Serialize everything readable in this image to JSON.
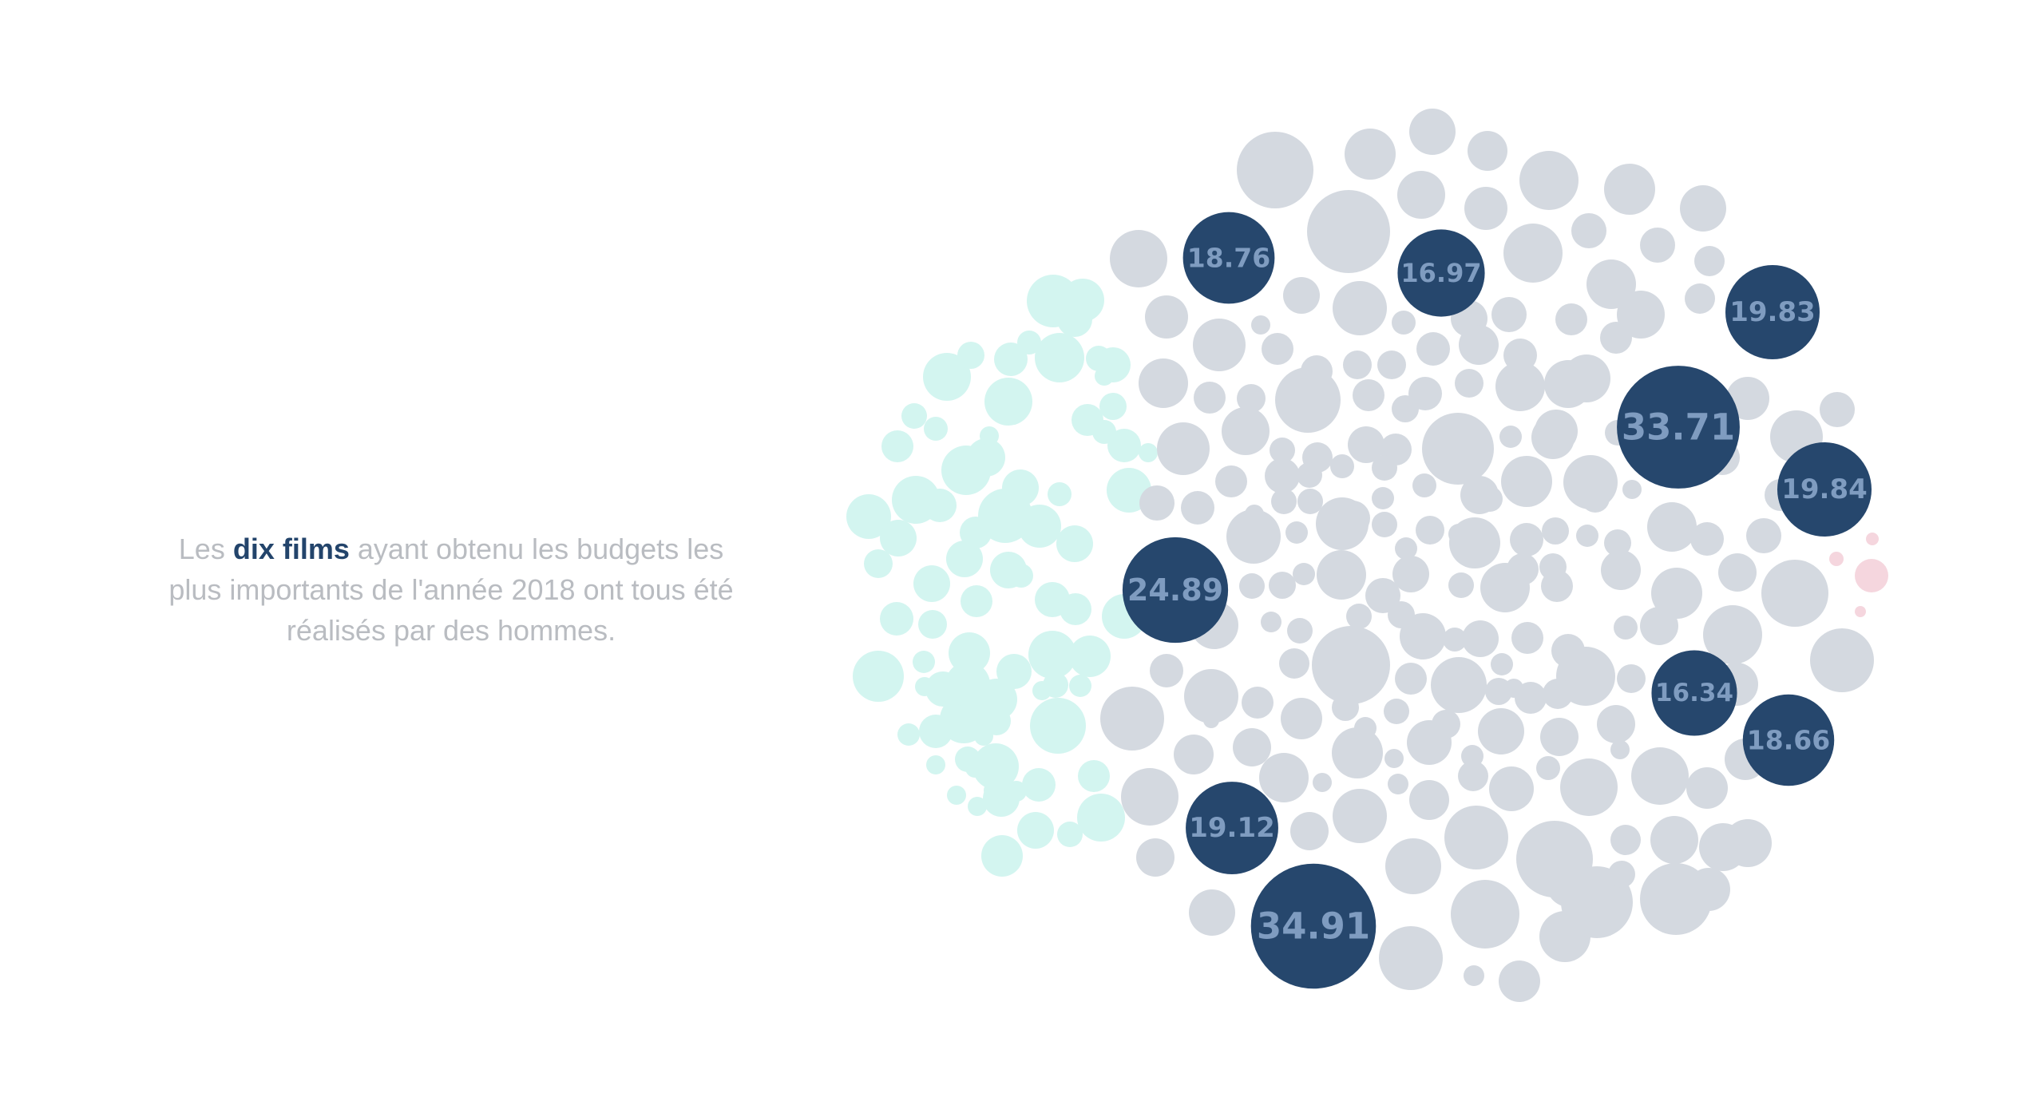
{
  "caption": {
    "before": "Les ",
    "highlight": "dix films",
    "after": " ayant obtenu les budgets les plus importants de l'année 2018 ont tous été réalisés par des hommes."
  },
  "colors": {
    "highlight_fill": "#26476d",
    "label_text": "#7f9cc0",
    "grey_bubble": "#d4d9e0",
    "mint_bubble": "#d3f5f0",
    "pink_bubble": "#f5d6de",
    "caption_text": "#b9bcc1",
    "caption_highlight": "#23446b"
  },
  "chart_data": {
    "type": "bubble",
    "series": [
      {
        "name": "",
        "color": "#26476d"
      },
      {
        "name": "",
        "color": "#d4d9e0"
      },
      {
        "name": "",
        "color": "#d3f5f0"
      },
      {
        "name": "",
        "color": "#f5d6de"
      }
    ],
    "highlighted_values": [
      34.91,
      33.71,
      24.89,
      19.84,
      19.83,
      19.12,
      18.76,
      18.66,
      16.97,
      16.34
    ]
  }
}
